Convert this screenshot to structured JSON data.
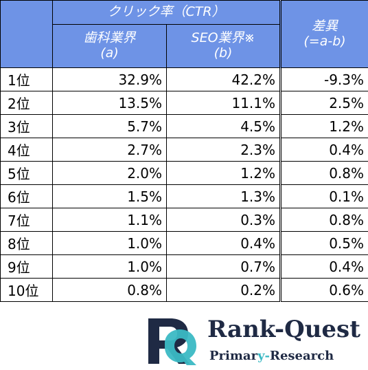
{
  "header": {
    "ctr_group": "クリック率（CTR）",
    "col_a_line1": "歯科業界",
    "col_a_line2": "(a)",
    "col_b_line1": "SEO業界※",
    "col_b_line2": "(b)",
    "diff_line1": "差異",
    "diff_line2": "(=a-b)"
  },
  "chart_data": {
    "type": "table",
    "columns": [
      "歯科業界 (a)",
      "SEO業界※ (b)",
      "差異 (=a-b)"
    ],
    "rows": [
      {
        "rank": "1位",
        "a": "32.9%",
        "b": "42.2%",
        "diff": "-9.3%"
      },
      {
        "rank": "2位",
        "a": "13.5%",
        "b": "11.1%",
        "diff": "2.5%"
      },
      {
        "rank": "3位",
        "a": "5.7%",
        "b": "4.5%",
        "diff": "1.2%"
      },
      {
        "rank": "4位",
        "a": "2.7%",
        "b": "2.3%",
        "diff": "0.4%"
      },
      {
        "rank": "5位",
        "a": "2.0%",
        "b": "1.2%",
        "diff": "0.8%"
      },
      {
        "rank": "6位",
        "a": "1.5%",
        "b": "1.3%",
        "diff": "0.1%"
      },
      {
        "rank": "7位",
        "a": "1.1%",
        "b": "0.3%",
        "diff": "0.8%"
      },
      {
        "rank": "8位",
        "a": "1.0%",
        "b": "0.4%",
        "diff": "0.5%"
      },
      {
        "rank": "9位",
        "a": "1.0%",
        "b": "0.7%",
        "diff": "0.4%"
      },
      {
        "rank": "10位",
        "a": "0.8%",
        "b": "0.2%",
        "diff": "0.6%"
      }
    ]
  },
  "logo": {
    "brand_part1": "Rank-",
    "brand_part2": "Quest",
    "tagline_part1": "Primar",
    "tagline_part2": "y-",
    "tagline_part3": "Research"
  },
  "colors": {
    "header_bg": "#6e93e6",
    "brand_navy": "#1f2a44",
    "brand_teal": "#3bb9c4"
  }
}
